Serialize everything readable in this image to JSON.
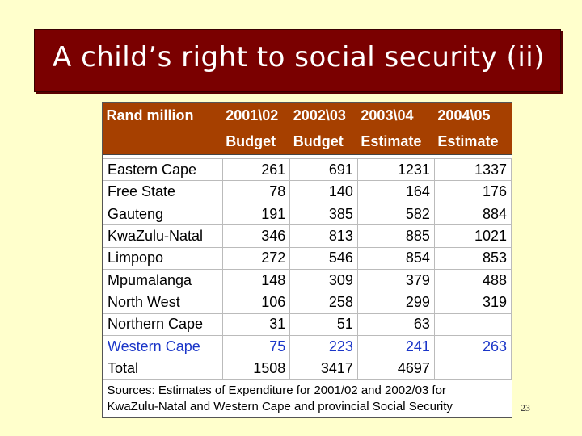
{
  "slide": {
    "title": "A child’s right to social security (ii)",
    "page_number": "23"
  },
  "table": {
    "header_row1": [
      "Rand million",
      "2001\\02",
      "2002\\03",
      "2003\\04",
      "2004\\05"
    ],
    "header_row2": [
      "",
      "Budget",
      "Budget",
      "Estimate",
      "Estimate"
    ],
    "rows": [
      [
        "Eastern Cape",
        "261",
        "691",
        "1231",
        "1337"
      ],
      [
        "Free State",
        "78",
        "140",
        "164",
        "176"
      ],
      [
        "Gauteng",
        "191",
        "385",
        "582",
        "884"
      ],
      [
        "KwaZulu-Natal",
        "346",
        "813",
        "885",
        "1021"
      ],
      [
        "Limpopo",
        "272",
        "546",
        "854",
        "853"
      ],
      [
        "Mpumalanga",
        "148",
        "309",
        "379",
        "488"
      ],
      [
        "North West",
        "106",
        "258",
        "299",
        "319"
      ],
      [
        "Northern Cape",
        "31",
        "51",
        "63",
        ""
      ],
      [
        "Western Cape",
        "75",
        "223",
        "241",
        "263"
      ],
      [
        "Total",
        "1508",
        "3417",
        "4697",
        ""
      ]
    ],
    "source_line1": "Sources: Estimates of Expenditure for 2001/02 and 2002/03 for",
    "source_line2": "KwaZulu-Natal and Western Cape and provincial Social Security"
  },
  "colors": {
    "background": "#ffffcc",
    "title_box": "#7a0000",
    "header_row": "#a64000",
    "highlight_row": "#1a35c8"
  }
}
